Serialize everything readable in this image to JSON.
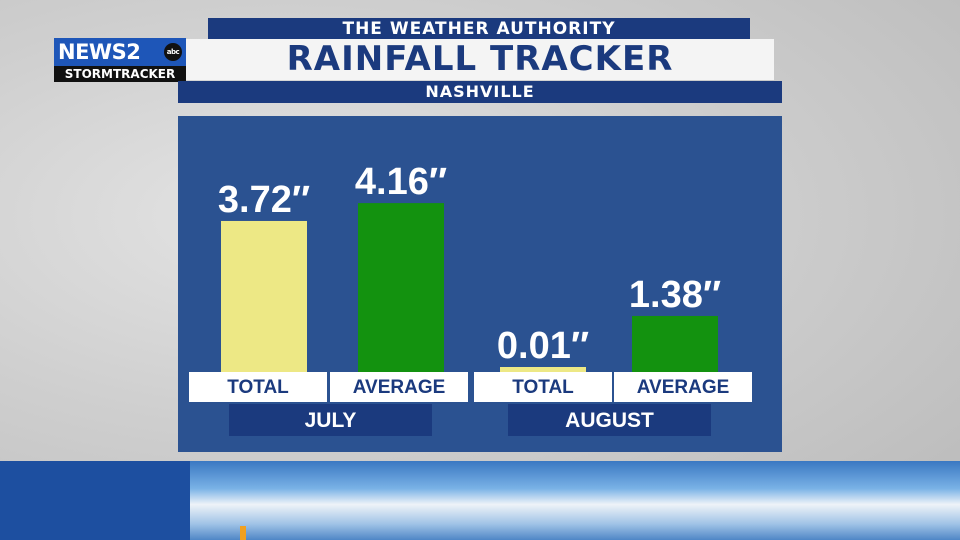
{
  "header": {
    "top_label": "THE WEATHER AUTHORITY",
    "title": "RAINFALL TRACKER",
    "location": "NASHVILLE"
  },
  "logo": {
    "brand": "NEWS",
    "channel": "2",
    "network": "abc",
    "subtitle": "STORMTRACKER"
  },
  "colors": {
    "total_bar": "#ede885",
    "average_bar": "#13920f",
    "panel": "#2b5291",
    "navy": "#1b3a7e"
  },
  "chart_data": {
    "type": "bar",
    "title": "RAINFALL TRACKER",
    "groups": [
      {
        "name": "JULY",
        "bars": [
          {
            "label": "TOTAL",
            "value": 3.72,
            "display": "3.72″"
          },
          {
            "label": "AVERAGE",
            "value": 4.16,
            "display": "4.16″"
          }
        ]
      },
      {
        "name": "AUGUST",
        "bars": [
          {
            "label": "TOTAL",
            "value": 0.01,
            "display": "0.01″"
          },
          {
            "label": "AVERAGE",
            "value": 1.38,
            "display": "1.38″"
          }
        ]
      }
    ]
  }
}
